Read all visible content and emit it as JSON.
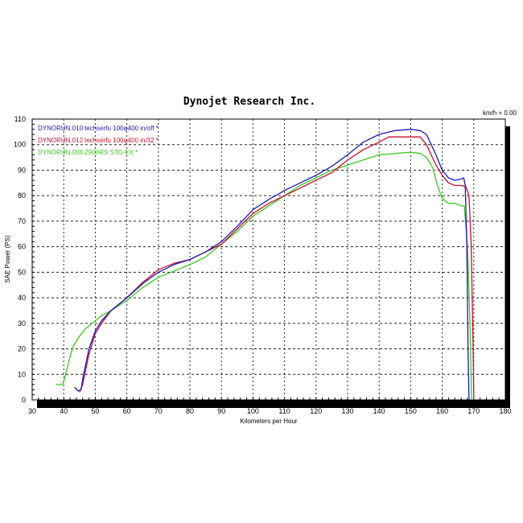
{
  "chart_data": {
    "type": "line",
    "title": "Dynojet Research Inc.",
    "annotation": "km/h = 0.00",
    "xlabel": "Kilometers per Hour",
    "ylabel": "SAE Power (PS)",
    "xlim": [
      30,
      180
    ],
    "ylim": [
      0,
      110
    ],
    "x_ticks": [
      30,
      40,
      50,
      60,
      70,
      80,
      90,
      100,
      110,
      120,
      130,
      140,
      150,
      160,
      170,
      180
    ],
    "y_ticks": [
      0,
      10,
      20,
      30,
      40,
      50,
      60,
      70,
      80,
      90,
      100,
      110
    ],
    "grid": true,
    "legend_position": "top-left inside",
    "series": [
      {
        "name": "DYNORUN.010  techserfu 100φ400 in/off *",
        "run": "DYNORUN.010",
        "description": "techserfu 100φ400 in/off *",
        "color": "#1a1ab4",
        "x": [
          43.5,
          44.5,
          45.5,
          46,
          47,
          48,
          50,
          52,
          55,
          60,
          65,
          70,
          75,
          80,
          85,
          90,
          95,
          100,
          105,
          110,
          115,
          120,
          125,
          130,
          135,
          140,
          145,
          150,
          153,
          155,
          158,
          160,
          162,
          164,
          166,
          166.8,
          167.3,
          167.8,
          168.2,
          168.5
        ],
        "y": [
          5,
          3.5,
          4,
          8,
          14,
          20,
          27,
          31,
          35,
          40,
          45.5,
          50,
          53,
          55,
          58,
          62,
          68,
          74.5,
          78.5,
          82,
          85,
          88,
          91.5,
          96,
          101,
          104,
          105.5,
          106,
          105.5,
          104,
          96,
          90,
          87,
          86,
          86.5,
          87,
          84,
          60,
          20,
          0
        ]
      },
      {
        "name": "DYNORUN.012  techserfu 100φ400 in/32 *",
        "run": "DYNORUN.012",
        "description": "techserfu 100φ400 in/32 *",
        "color": "#c8102e",
        "x": [
          45,
          46,
          47,
          48,
          50,
          52,
          55,
          60,
          65,
          70,
          75,
          80,
          85,
          90,
          95,
          100,
          105,
          110,
          115,
          120,
          125,
          130,
          135,
          140,
          143,
          145,
          150,
          153,
          155,
          158,
          160,
          162,
          164,
          166,
          167.5,
          168.5,
          169.2,
          169.8,
          170
        ],
        "y": [
          3,
          6,
          12,
          18,
          26,
          30,
          35,
          40,
          46,
          51,
          53.5,
          55,
          58,
          61,
          67,
          73,
          77,
          80,
          83,
          86,
          89,
          94,
          98,
          101,
          103,
          103,
          103,
          103,
          100,
          92,
          88,
          85,
          84,
          84,
          83.5,
          80,
          60,
          20,
          0
        ]
      },
      {
        "name": "DYNORUN.008  Z900RS  STD-EX *",
        "run": "DYNORUN.008",
        "description": "Z900RS  STD-EX *",
        "color": "#3ec81e",
        "x": [
          37.5,
          39.5,
          40,
          41,
          42,
          43,
          45,
          47,
          50,
          52,
          55,
          60,
          65,
          70,
          75,
          80,
          85,
          90,
          95,
          100,
          105,
          110,
          115,
          120,
          125,
          130,
          135,
          140,
          145,
          150,
          153,
          155,
          157,
          158,
          159,
          160,
          162,
          164,
          166,
          167,
          168,
          168.8,
          169.3
        ],
        "y": [
          6,
          6,
          7,
          12,
          17,
          21,
          25,
          28,
          31,
          33,
          35,
          39,
          44,
          48,
          50.5,
          53,
          56,
          61,
          66,
          72,
          76,
          80,
          84,
          87,
          90,
          92,
          94,
          96,
          96.5,
          97,
          96.5,
          95,
          91,
          86,
          82,
          79,
          77,
          77,
          76,
          76,
          60,
          30,
          0
        ]
      }
    ]
  },
  "header": {
    "title": "Dynojet  Research  Inc.",
    "readout": "km/h = 0.00"
  },
  "axes": {
    "xlabel": "Kilometers per Hour",
    "ylabel": "SAE Power (PS)"
  },
  "legend": [
    {
      "run": "DYNORUN.010",
      "desc": "techserfu 100φ400 in/off *",
      "color": "#1a1ab4"
    },
    {
      "run": "DYNORUN.012",
      "desc": "techserfu 100φ400 in/32 *",
      "color": "#c8102e"
    },
    {
      "run": "DYNORUN.008",
      "desc": "Z900RS  STD-EX *",
      "color": "#3ec81e"
    }
  ]
}
